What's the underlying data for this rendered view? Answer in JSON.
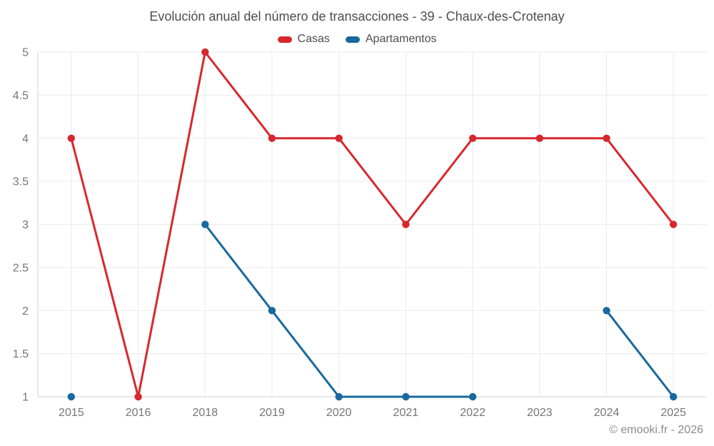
{
  "page": {
    "copyright": "© emooki.fr - 2026"
  },
  "chart_data": {
    "type": "line",
    "title": "Evolución anual del número de transacciones - 39 - Chaux-des-Crotenay",
    "categories": [
      "2015",
      "2016",
      "2018",
      "2019",
      "2020",
      "2021",
      "2022",
      "2023",
      "2024",
      "2025"
    ],
    "series": [
      {
        "name": "Casas",
        "color": "#d7282e",
        "values": [
          4,
          1,
          5,
          4,
          4,
          3,
          4,
          4,
          4,
          3
        ]
      },
      {
        "name": "Apartamentos",
        "color": "#17699e",
        "values": [
          1,
          null,
          3,
          2,
          1,
          1,
          1,
          null,
          2,
          1
        ]
      }
    ],
    "ylim": [
      1,
      5
    ],
    "ytick_step": 0.5,
    "ytick_labels": [
      "1",
      "1.5",
      "2",
      "2.5",
      "3",
      "3.5",
      "4",
      "4.5",
      "5"
    ],
    "grid": true,
    "legend_position": "top",
    "xlabel": "",
    "ylabel": ""
  },
  "colors": {
    "background": "#ffffff",
    "title_text": "#4d4d4d",
    "legend_text": "#4d4d4d",
    "tick_text": "#757575",
    "gridline": "#ebebeb",
    "axis_line": "#d0d0d0",
    "copyright_text": "#8c8c8c"
  }
}
